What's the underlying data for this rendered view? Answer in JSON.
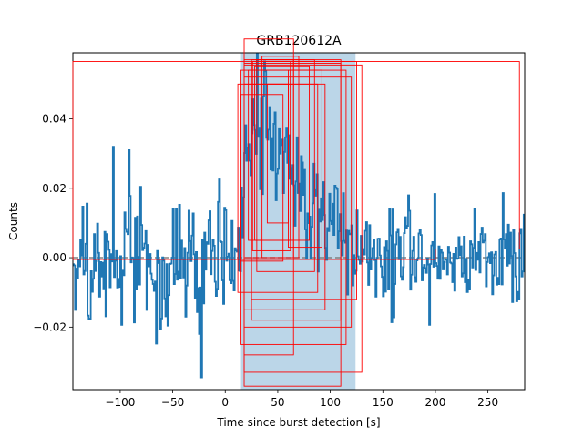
{
  "chart_data": {
    "type": "line",
    "title": "GRB120612A",
    "xlabel": "Time since burst detection [s]",
    "ylabel": "Counts",
    "xlim": [
      -145,
      285
    ],
    "ylim": [
      -0.038,
      0.059
    ],
    "xticks": [
      -100,
      -50,
      0,
      50,
      100,
      150,
      200,
      250
    ],
    "xtick_labels": [
      "−100",
      "−50",
      "0",
      "50",
      "100",
      "150",
      "200",
      "250"
    ],
    "yticks": [
      -0.02,
      0.0,
      0.02,
      0.04
    ],
    "ytick_labels": [
      "−0.02",
      "0.00",
      "0.02",
      "0.04"
    ],
    "grid": false,
    "legend": "none",
    "colors": {
      "series": "#1f77b4",
      "span": "#1f77b4",
      "boxes": "#ff0000",
      "baseline": "#808080"
    },
    "span": {
      "x0": 15,
      "x1": 124,
      "alpha": 0.3
    },
    "baseline": {
      "y": 0.0,
      "style": "dashed"
    },
    "series": [
      {
        "step": 1.0,
        "x_start": -145,
        "knots": [
          [
            -145,
            -0.002
          ],
          [
            -138,
            0.004
          ],
          [
            -130,
            -0.01
          ],
          [
            -122,
            0.006
          ],
          [
            -115,
            -0.006
          ],
          [
            -108,
            0.004
          ],
          [
            -100,
            -0.01
          ],
          [
            -92,
            0.008
          ],
          [
            -85,
            -0.004
          ],
          [
            -77,
            0.012
          ],
          [
            -70,
            -0.006
          ],
          [
            -62,
            0.003
          ],
          [
            -55,
            -0.008
          ],
          [
            -47,
            0.006
          ],
          [
            -40,
            -0.002
          ],
          [
            -32,
            0.004
          ],
          [
            -25,
            -0.006
          ],
          [
            -17,
            0.006
          ],
          [
            -10,
            -0.004
          ],
          [
            -2,
            0.002
          ],
          [
            5,
            -0.004
          ],
          [
            12,
            0.004
          ],
          [
            16,
            0.012
          ],
          [
            20,
            0.028
          ],
          [
            25,
            0.035
          ],
          [
            30,
            0.036
          ],
          [
            35,
            0.037
          ],
          [
            40,
            0.04
          ],
          [
            45,
            0.035
          ],
          [
            50,
            0.032
          ],
          [
            55,
            0.028
          ],
          [
            60,
            0.03
          ],
          [
            65,
            0.022
          ],
          [
            70,
            0.02
          ],
          [
            75,
            0.016
          ],
          [
            80,
            0.014
          ],
          [
            85,
            0.012
          ],
          [
            90,
            0.011
          ],
          [
            95,
            0.01
          ],
          [
            100,
            0.008
          ],
          [
            105,
            0.008
          ],
          [
            110,
            0.006
          ],
          [
            115,
            0.004
          ],
          [
            120,
            0.003
          ],
          [
            126,
            0.001
          ],
          [
            135,
            0.0
          ],
          [
            145,
            0.004
          ],
          [
            155,
            -0.004
          ],
          [
            165,
            0.006
          ],
          [
            175,
            -0.004
          ],
          [
            185,
            0.005
          ],
          [
            195,
            -0.006
          ],
          [
            205,
            0.004
          ],
          [
            215,
            -0.003
          ],
          [
            225,
            0.005
          ],
          [
            235,
            -0.004
          ],
          [
            245,
            0.004
          ],
          [
            255,
            -0.004
          ],
          [
            265,
            0.005
          ],
          [
            275,
            -0.002
          ],
          [
            285,
            0.002
          ]
        ],
        "sigma": 0.0085,
        "seed": 120612
      }
    ],
    "boxes": [
      {
        "x0": -145,
        "y0": 0.0025,
        "x1": 280,
        "y1": 0.0565
      },
      {
        "x0": -145,
        "y0": -0.0005,
        "x1": 200,
        "y1": 0.0025
      },
      {
        "x0": 18,
        "y0": -0.037,
        "x1": 110,
        "y1": 0.056
      },
      {
        "x0": 18,
        "y0": -0.033,
        "x1": 130,
        "y1": 0.0555
      },
      {
        "x0": 18,
        "y0": -0.028,
        "x1": 65,
        "y1": 0.057
      },
      {
        "x0": 18,
        "y0": 0.0,
        "x1": 65,
        "y1": 0.063
      },
      {
        "x0": 18,
        "y0": -0.02,
        "x1": 120,
        "y1": 0.052
      },
      {
        "x0": 18,
        "y0": -0.015,
        "x1": 95,
        "y1": 0.05
      },
      {
        "x0": 22,
        "y0": 0.005,
        "x1": 62,
        "y1": 0.054
      },
      {
        "x0": 25,
        "y0": -0.018,
        "x1": 110,
        "y1": 0.057
      },
      {
        "x0": 25,
        "y0": -0.012,
        "x1": 125,
        "y1": 0.0565
      },
      {
        "x0": 26,
        "y0": 0.002,
        "x1": 62,
        "y1": 0.0565
      },
      {
        "x0": 28,
        "y0": 0.005,
        "x1": 80,
        "y1": 0.055
      },
      {
        "x0": 30,
        "y0": -0.004,
        "x1": 85,
        "y1": 0.057
      },
      {
        "x0": 35,
        "y0": 0.0,
        "x1": 70,
        "y1": 0.058
      },
      {
        "x0": 40,
        "y0": 0.01,
        "x1": 60,
        "y1": 0.05
      },
      {
        "x0": 15,
        "y0": -0.025,
        "x1": 115,
        "y1": 0.054
      },
      {
        "x0": 12,
        "y0": -0.01,
        "x1": 88,
        "y1": 0.05
      },
      {
        "x0": 60,
        "y0": 0.003,
        "x1": 92,
        "y1": 0.054
      },
      {
        "x0": 15,
        "y0": -0.001,
        "x1": 55,
        "y1": 0.047
      }
    ]
  }
}
